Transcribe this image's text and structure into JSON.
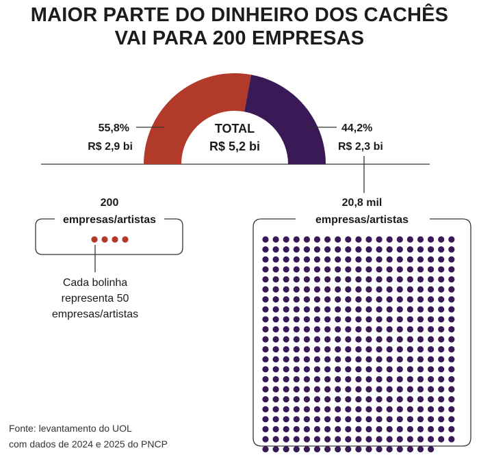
{
  "title_line1": "MAIOR PARTE DO DINHEIRO DOS CACHÊS",
  "title_line2": "VAI PARA 200 EMPRESAS",
  "colors": {
    "left": "#b23a2a",
    "right": "#3a1a56",
    "dots_left": "#b23a2a",
    "dots_right": "#3a1a56"
  },
  "chart_data": {
    "type": "pie",
    "subtype": "half-donut",
    "center_label": "TOTAL",
    "center_value": "R$ 5,2 bi",
    "slices": [
      {
        "percent": 55.8,
        "percent_label": "55,8%",
        "value_label": "R$ 2,9 bi",
        "color": "#b23a2a"
      },
      {
        "percent": 44.2,
        "percent_label": "44,2%",
        "value_label": "R$ 2,3 bi",
        "color": "#3a1a56"
      }
    ]
  },
  "groups": {
    "left": {
      "count_label": "200",
      "name_label": "empresas/artistas",
      "dot_count": 4
    },
    "right": {
      "count_label": "20,8 mil",
      "name_label": "empresas/artistas",
      "dot_count": 416
    }
  },
  "legend_note": [
    "Cada bolinha",
    "representa 50",
    "empresas/artistas"
  ],
  "source_line1": "Fonte:  levantamento do UOL",
  "source_line2": "com dados de 2024 e 2025 do PNCP"
}
